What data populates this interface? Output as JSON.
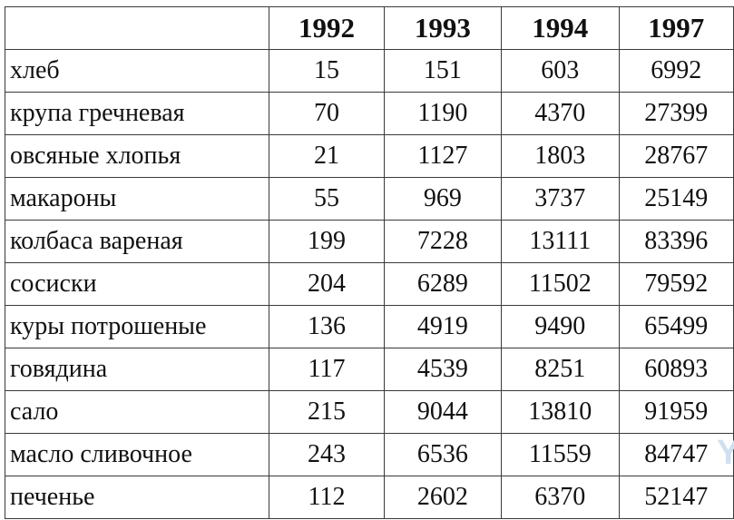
{
  "table": {
    "header": [
      "",
      "1992",
      "1993",
      "1994",
      "1997"
    ],
    "rows": [
      {
        "name": "хлеб",
        "values": [
          "15",
          "151",
          "603",
          "6992"
        ]
      },
      {
        "name": "крупа гречневая",
        "values": [
          "70",
          "1190",
          "4370",
          "27399"
        ]
      },
      {
        "name": "овсяные хлопья",
        "values": [
          "21",
          "1127",
          "1803",
          "28767"
        ]
      },
      {
        "name": "макароны",
        "values": [
          "55",
          "969",
          "3737",
          "25149"
        ]
      },
      {
        "name": "колбаса вареная",
        "values": [
          "199",
          "7228",
          "13111",
          "83396"
        ]
      },
      {
        "name": "сосиски",
        "values": [
          "204",
          "6289",
          "11502",
          "79592"
        ]
      },
      {
        "name": "куры потрошеные",
        "values": [
          "136",
          "4919",
          "9490",
          "65499"
        ]
      },
      {
        "name": "говядина",
        "values": [
          "117",
          "4539",
          "8251",
          "60893"
        ]
      },
      {
        "name": "сало",
        "values": [
          "215",
          "9044",
          "13810",
          "91959"
        ]
      },
      {
        "name": "масло сливочное",
        "values": [
          "243",
          "6536",
          "11559",
          "84747"
        ]
      },
      {
        "name": "печенье",
        "values": [
          "112",
          "2602",
          "6370",
          "52147"
        ]
      }
    ]
  },
  "watermark": {
    "text": "Y",
    "color": "#cfe0f1"
  }
}
